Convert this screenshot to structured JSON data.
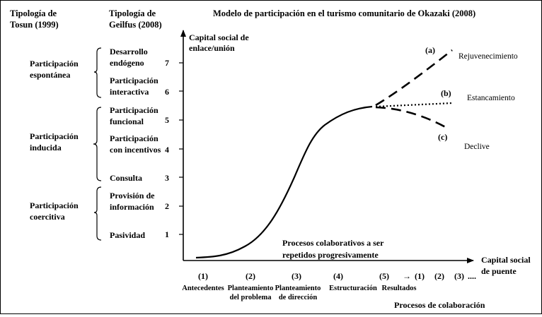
{
  "headers": {
    "tosun": [
      "Tipología de",
      "Tosun  (1999)"
    ],
    "geilfus": [
      "Tipología de",
      "Geilfus (2008)"
    ],
    "title": "Modelo de participación en el turismo comunitario de Okazaki (2008)"
  },
  "tosun_groups": [
    {
      "lines": [
        "Participación",
        "espontánea"
      ]
    },
    {
      "lines": [
        "Participación",
        "inducida"
      ]
    },
    {
      "lines": [
        "Participación",
        "coercitiva"
      ]
    }
  ],
  "geilfus_levels": [
    {
      "value": 7,
      "lines": [
        "Desarrollo",
        "endógeno"
      ]
    },
    {
      "value": 6,
      "lines": [
        "Participación",
        "interactiva"
      ]
    },
    {
      "value": 5,
      "lines": [
        "Participación",
        "funcional"
      ]
    },
    {
      "value": 4,
      "lines": [
        "Participación",
        "con incentivos"
      ]
    },
    {
      "value": 3,
      "lines": [
        "Consulta"
      ]
    },
    {
      "value": 2,
      "lines": [
        "Provisión de",
        "información"
      ]
    },
    {
      "value": 1,
      "lines": [
        "Pasividad"
      ]
    }
  ],
  "y_axis_label": [
    "Capital social de",
    "enlace/unión"
  ],
  "x_axis_label": [
    "Capital social",
    "de puente"
  ],
  "x_axis_bottom_label": "Procesos de colaboración",
  "annotation": [
    "Procesos colaborativos a ser",
    "repetidos progresivamente"
  ],
  "x_steps": [
    {
      "num": "(1)",
      "lines": [
        "Antecedentes"
      ]
    },
    {
      "num": "(2)",
      "lines": [
        "Planteamiento",
        "del problema"
      ]
    },
    {
      "num": "(3)",
      "lines": [
        "Planteamiento",
        "de dirección"
      ]
    },
    {
      "num": "(4)",
      "lines": [
        "Estructuración"
      ]
    },
    {
      "num": "(5)",
      "lines": [
        "Resultados"
      ]
    }
  ],
  "repeat_steps": [
    "(1)",
    "(2)",
    "(3)"
  ],
  "repeat_arrow": "→",
  "repeat_ellipsis": "....",
  "branches": [
    {
      "tag": "(a)",
      "label": "Rejuvenecimiento",
      "style": "dashed"
    },
    {
      "tag": "(b)",
      "label": "Estancamiento",
      "style": "dotted"
    },
    {
      "tag": "(c)",
      "label": "Declive",
      "style": "dashed"
    }
  ]
}
